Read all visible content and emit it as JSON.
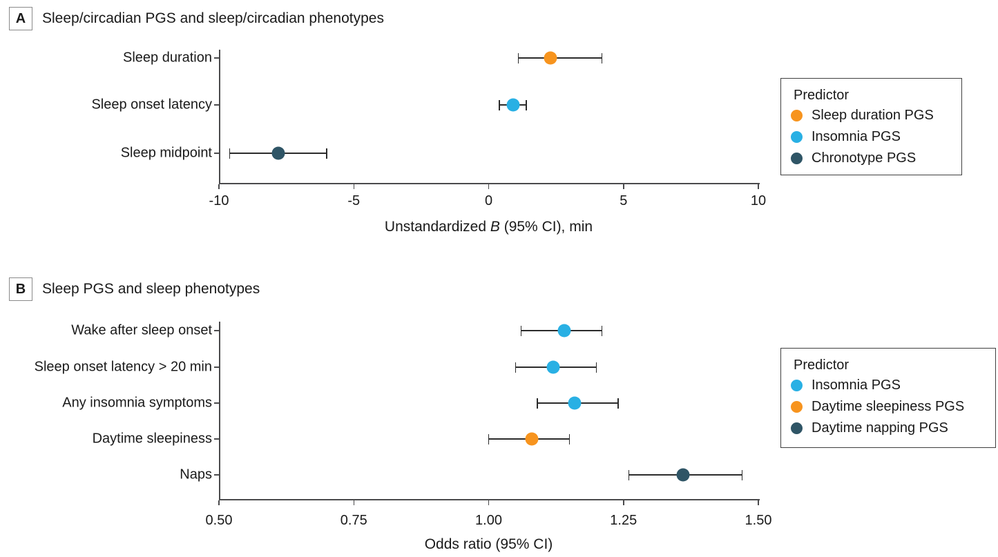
{
  "colors": {
    "orange": "#F7941E",
    "blue": "#29B0E4",
    "dark_slate": "#2F5566",
    "axis": "#4A4A4C",
    "error_bar": "#2B2B2B",
    "text": "#1A1A1A"
  },
  "chart_data": [
    {
      "type": "scatter",
      "subtype": "forest-plot-dot-ci",
      "panel_label": "A",
      "title": "Sleep/circadian PGS and sleep/circadian phenotypes",
      "categories": [
        "Sleep duration",
        "Sleep onset latency",
        "Sleep midpoint"
      ],
      "xlabel_segments": [
        {
          "text": "Unstandardized ",
          "italic": false
        },
        {
          "text": "B",
          "italic": true
        },
        {
          "text": " (95% CI), min",
          "italic": false
        }
      ],
      "xlim": [
        -10,
        10
      ],
      "xticks": [
        {
          "value": -10,
          "label": "-10"
        },
        {
          "value": -5,
          "label": "-5"
        },
        {
          "value": 0,
          "label": "0"
        },
        {
          "value": 5,
          "label": "5"
        },
        {
          "value": 10,
          "label": "10"
        }
      ],
      "grid": false,
      "legend": {
        "title": "Predictor",
        "position": "right",
        "entries": [
          {
            "label": "Sleep duration PGS",
            "color": "#F7941E"
          },
          {
            "label": "Insomnia PGS",
            "color": "#29B0E4"
          },
          {
            "label": "Chronotype PGS",
            "color": "#2F5566"
          }
        ]
      },
      "rows": [
        {
          "category": "Sleep duration",
          "predictor": "Sleep duration PGS",
          "color": "#F7941E",
          "estimate": 2.3,
          "ci_low": 1.1,
          "ci_high": 4.2
        },
        {
          "category": "Sleep onset latency",
          "predictor": "Insomnia PGS",
          "color": "#29B0E4",
          "estimate": 0.9,
          "ci_low": 0.4,
          "ci_high": 1.4
        },
        {
          "category": "Sleep midpoint",
          "predictor": "Chronotype PGS",
          "color": "#2F5566",
          "estimate": -7.8,
          "ci_low": -9.6,
          "ci_high": -6.0
        }
      ]
    },
    {
      "type": "scatter",
      "subtype": "forest-plot-dot-ci",
      "panel_label": "B",
      "title": "Sleep PGS and sleep phenotypes",
      "categories": [
        "Wake after sleep onset",
        "Sleep onset latency > 20 min",
        "Any insomnia symptoms",
        "Daytime sleepiness",
        "Naps"
      ],
      "xlabel_segments": [
        {
          "text": "Odds ratio (95% CI)",
          "italic": false
        }
      ],
      "xlim": [
        0.5,
        1.5
      ],
      "xticks": [
        {
          "value": 0.5,
          "label": "0.50"
        },
        {
          "value": 0.75,
          "label": "0.75"
        },
        {
          "value": 1.0,
          "label": "1.00"
        },
        {
          "value": 1.25,
          "label": "1.25"
        },
        {
          "value": 1.5,
          "label": "1.50"
        }
      ],
      "grid": false,
      "legend": {
        "title": "Predictor",
        "position": "right",
        "entries": [
          {
            "label": "Insomnia PGS",
            "color": "#29B0E4"
          },
          {
            "label": "Daytime sleepiness PGS",
            "color": "#F7941E"
          },
          {
            "label": "Daytime napping PGS",
            "color": "#2F5566"
          }
        ]
      },
      "rows": [
        {
          "category": "Wake after sleep onset",
          "predictor": "Insomnia PGS",
          "color": "#29B0E4",
          "estimate": 1.14,
          "ci_low": 1.06,
          "ci_high": 1.21
        },
        {
          "category": "Sleep onset latency > 20 min",
          "predictor": "Insomnia PGS",
          "color": "#29B0E4",
          "estimate": 1.12,
          "ci_low": 1.05,
          "ci_high": 1.2
        },
        {
          "category": "Any insomnia symptoms",
          "predictor": "Insomnia PGS",
          "color": "#29B0E4",
          "estimate": 1.16,
          "ci_low": 1.09,
          "ci_high": 1.24
        },
        {
          "category": "Daytime sleepiness",
          "predictor": "Daytime sleepiness PGS",
          "color": "#F7941E",
          "estimate": 1.08,
          "ci_low": 1.0,
          "ci_high": 1.15
        },
        {
          "category": "Naps",
          "predictor": "Daytime napping PGS",
          "color": "#2F5566",
          "estimate": 1.36,
          "ci_low": 1.26,
          "ci_high": 1.47
        }
      ]
    }
  ]
}
